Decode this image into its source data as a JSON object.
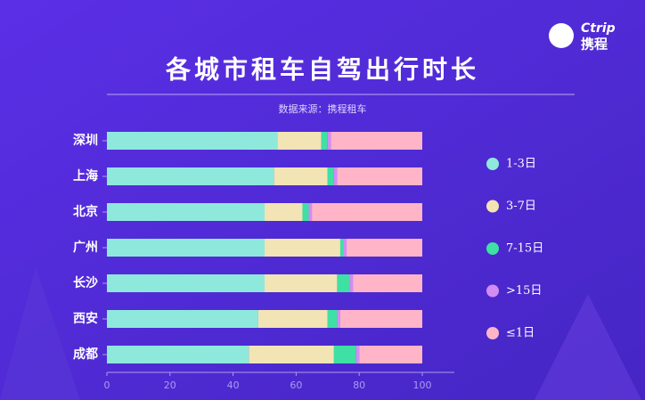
{
  "logo": {
    "brand": "Ctrip",
    "name": "携程"
  },
  "chart_data": {
    "type": "stacked-barh",
    "title": "各城市租车自驾出行时长",
    "subtitle": "数据来源：携程租车",
    "categories": [
      "深圳",
      "上海",
      "北京",
      "广州",
      "长沙",
      "西安",
      "成都"
    ],
    "series": [
      {
        "name": "1-3日",
        "color": "#8fe8dc",
        "values": [
          54,
          53,
          50,
          50,
          50,
          48,
          45
        ]
      },
      {
        "name": "3-7日",
        "color": "#f2e4b4",
        "values": [
          14,
          17,
          12,
          24,
          23,
          22,
          27
        ]
      },
      {
        "name": "7-15日",
        "color": "#3fe0a4",
        "values": [
          2,
          2,
          2,
          1,
          4,
          3,
          7
        ]
      },
      {
        "name": ">15日",
        "color": "#d28cf4",
        "values": [
          1,
          1,
          1,
          1,
          1,
          1,
          1
        ]
      },
      {
        "name": "≤1日",
        "color": "#ffb4c8",
        "values": [
          29,
          27,
          35,
          24,
          22,
          26,
          20
        ]
      }
    ],
    "xlim": [
      0,
      100
    ],
    "xticks": [
      0,
      20,
      40,
      60,
      80,
      100
    ],
    "legend": "right"
  }
}
